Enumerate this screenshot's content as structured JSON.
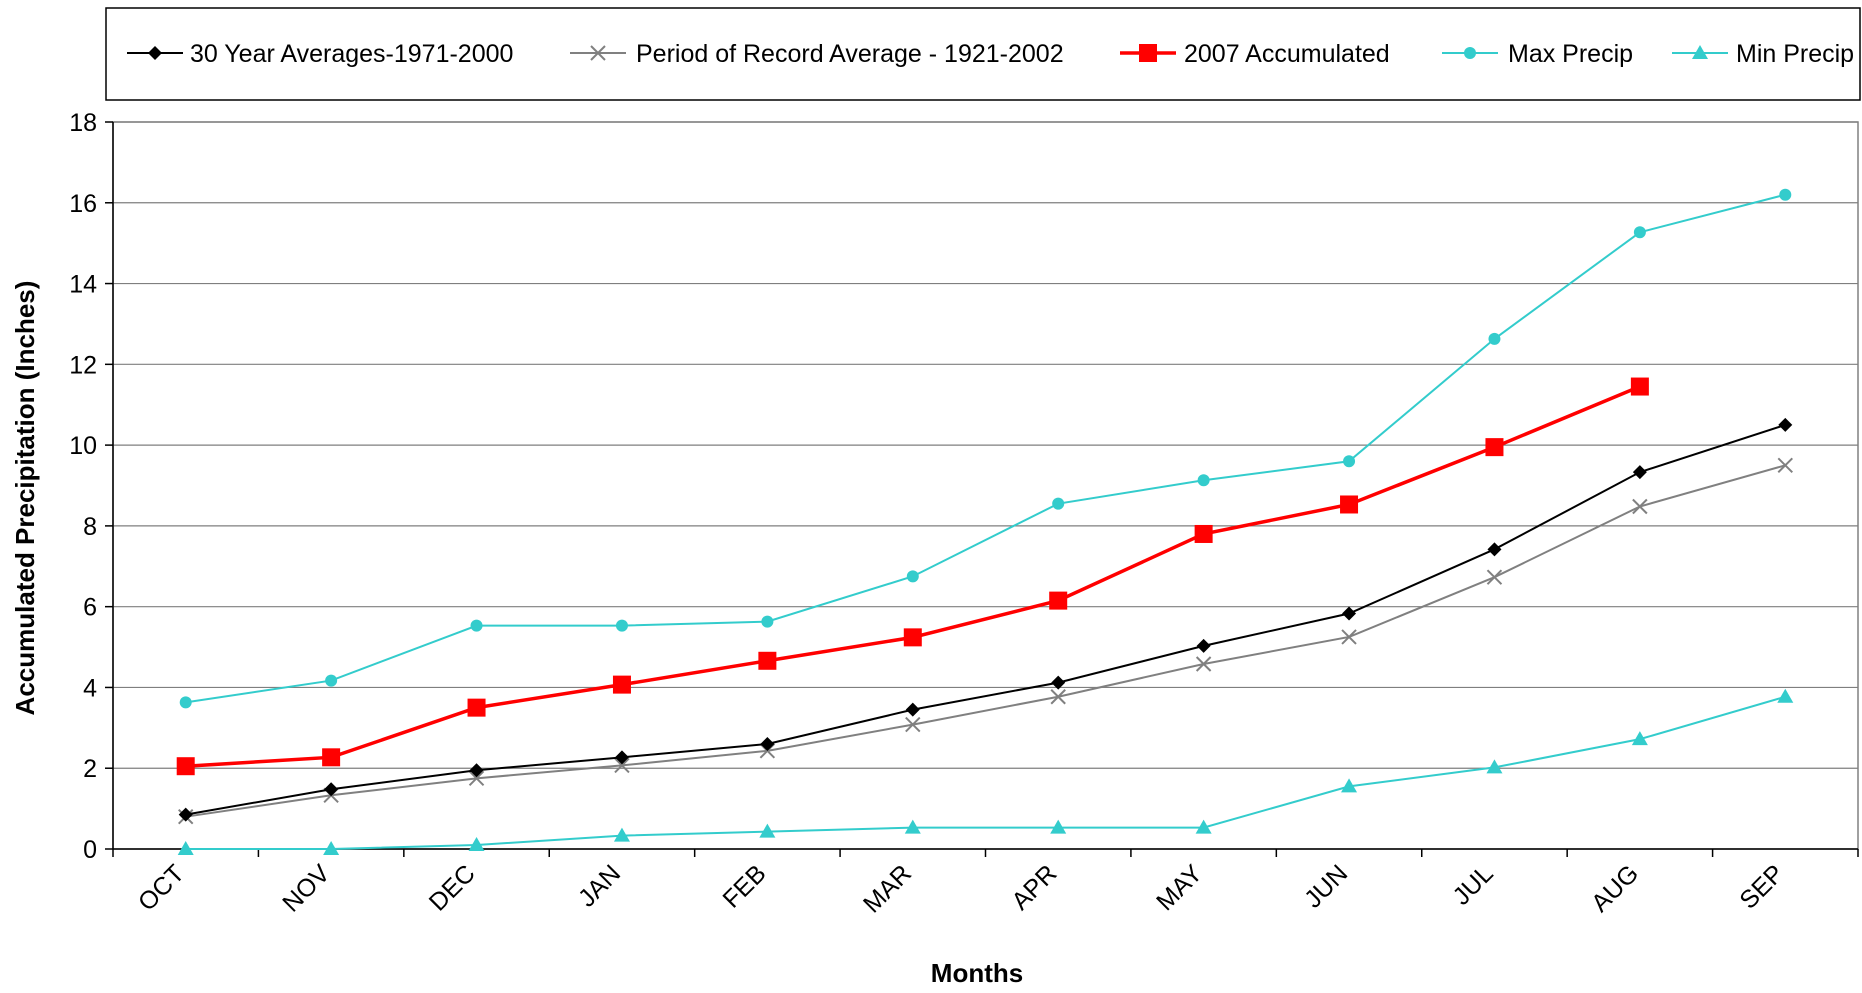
{
  "chart_data": {
    "type": "line",
    "categories": [
      "OCT",
      "NOV",
      "DEC",
      "JAN",
      "FEB",
      "MAR",
      "APR",
      "MAY",
      "JUN",
      "JUL",
      "AUG",
      "SEP"
    ],
    "xlabel": "Months",
    "ylabel": "Accumulated Precipitation (Inches)",
    "ylim": [
      0,
      18
    ],
    "yticks": [
      "0",
      "2",
      "4",
      "6",
      "8",
      "10",
      "12",
      "14",
      "16",
      "18"
    ],
    "grid": "horizontal",
    "legend_position": "top",
    "series": [
      {
        "name": "30 Year Averages-1971-2000",
        "color": "#000000",
        "marker": "diamond",
        "values": [
          0.85,
          1.48,
          1.95,
          2.27,
          2.6,
          3.45,
          4.12,
          5.03,
          5.83,
          7.42,
          9.33,
          10.5
        ]
      },
      {
        "name": "Period of Record Average - 1921-2002",
        "color": "#808080",
        "marker": "x",
        "values": [
          0.8,
          1.33,
          1.75,
          2.07,
          2.43,
          3.08,
          3.77,
          4.58,
          5.25,
          6.73,
          8.48,
          9.5
        ]
      },
      {
        "name": "2007 Accumulated",
        "color": "#ff0000",
        "marker": "square",
        "values": [
          2.05,
          2.27,
          3.5,
          4.07,
          4.66,
          5.24,
          6.15,
          7.8,
          8.53,
          9.95,
          11.45,
          null
        ]
      },
      {
        "name": "Max Precip",
        "color": "#33cccc",
        "marker": "circle",
        "values": [
          3.63,
          4.17,
          5.53,
          5.53,
          5.63,
          6.75,
          8.55,
          9.13,
          9.6,
          12.63,
          15.27,
          16.2
        ]
      },
      {
        "name": "Min Precip",
        "color": "#33cccc",
        "marker": "triangle",
        "values": [
          0.0,
          0.0,
          0.1,
          0.33,
          0.43,
          0.53,
          0.53,
          0.53,
          1.55,
          2.02,
          2.72,
          3.77
        ]
      }
    ]
  }
}
